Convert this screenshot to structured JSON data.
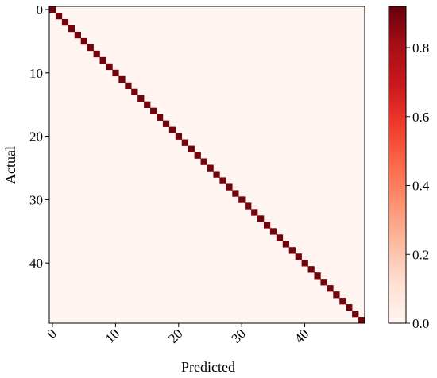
{
  "chart_data": {
    "type": "heatmap",
    "title": "",
    "xlabel": "Predicted",
    "ylabel": "Actual",
    "classes": 50,
    "x_ticks": [
      0,
      10,
      20,
      30,
      40
    ],
    "y_ticks": [
      0,
      10,
      20,
      30,
      40
    ],
    "diagonal_value": 0.9,
    "off_diagonal_value": 0.0,
    "colorbar": {
      "min": 0.0,
      "max": 0.92,
      "ticks": [
        0.0,
        0.2,
        0.4,
        0.6,
        0.8
      ],
      "tick_labels": [
        "0.0",
        "0.2",
        "0.4",
        "0.6",
        "0.8"
      ],
      "colormap": "Reds"
    },
    "colors": {
      "low": "#fff5f0",
      "high": "#67000d"
    }
  }
}
